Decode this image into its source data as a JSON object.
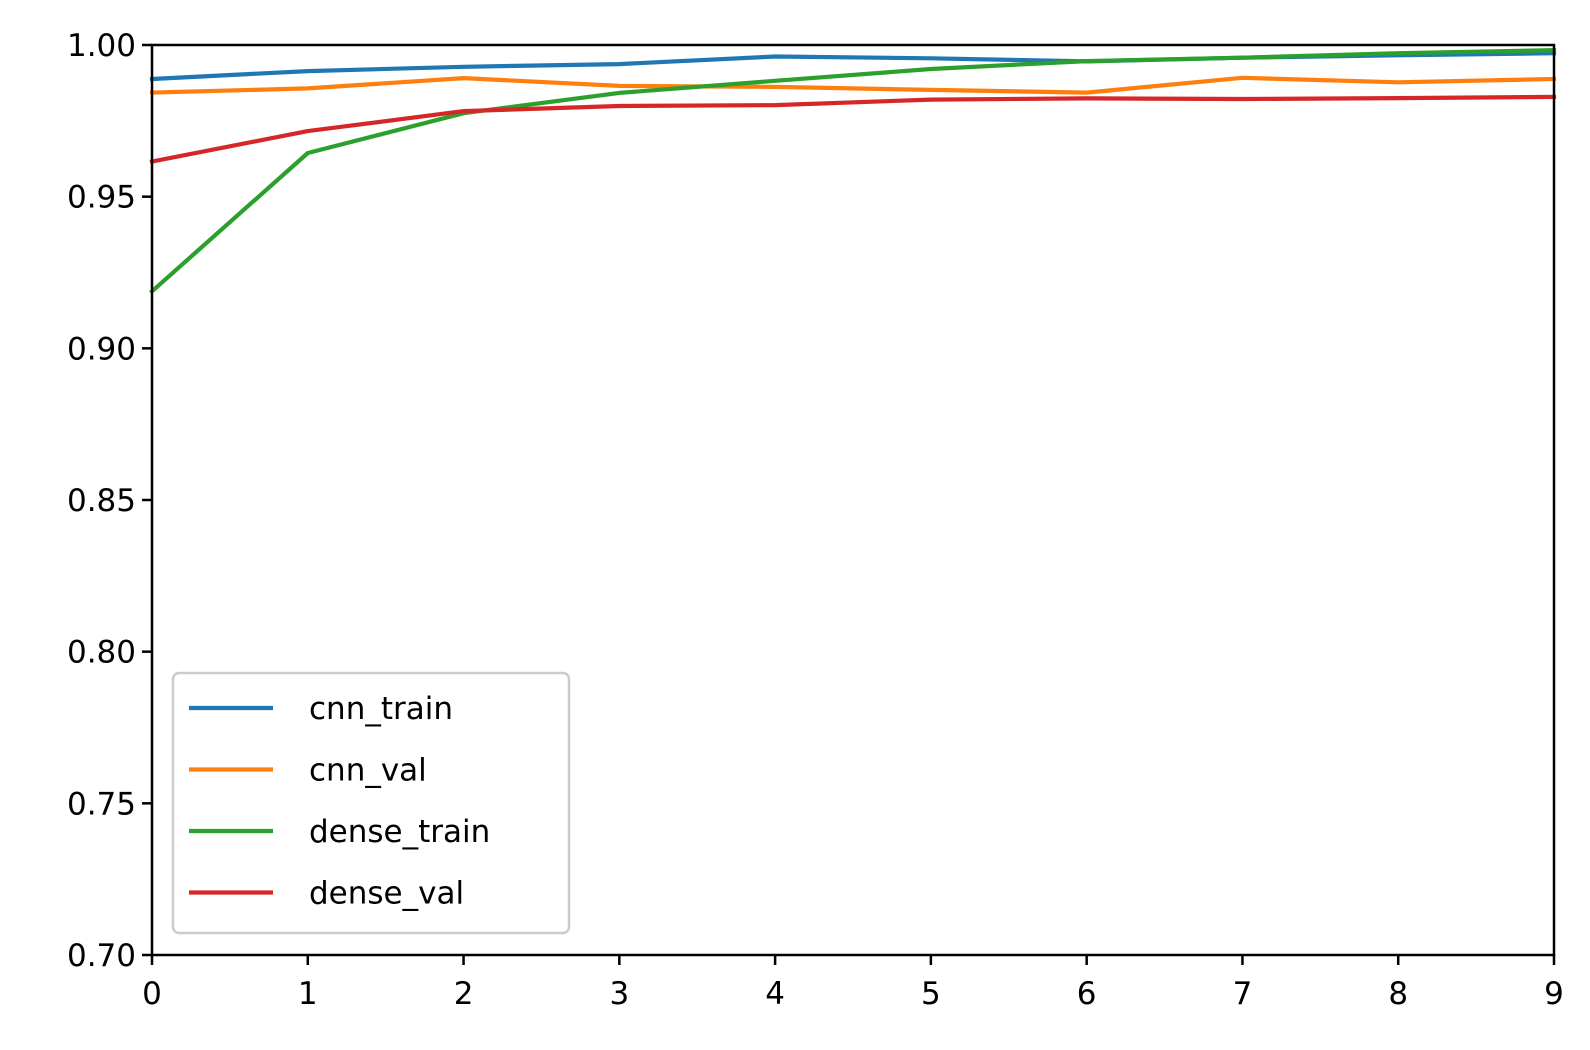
{
  "chart_data": {
    "type": "line",
    "title": "",
    "xlabel": "",
    "ylabel": "",
    "x": [
      0,
      1,
      2,
      3,
      4,
      5,
      6,
      7,
      8,
      9
    ],
    "xlim": [
      0,
      9
    ],
    "ylim": [
      0.7,
      1.0
    ],
    "x_ticks": [
      "0",
      "1",
      "2",
      "3",
      "4",
      "5",
      "6",
      "7",
      "8",
      "9"
    ],
    "y_ticks": [
      "0.70",
      "0.75",
      "0.80",
      "0.85",
      "0.90",
      "0.95",
      "1.00"
    ],
    "grid": false,
    "legend_position": "lower-left",
    "series": [
      {
        "name": "cnn_train",
        "color": "#1f77b4",
        "values": [
          0.9888,
          0.9914,
          0.9928,
          0.9937,
          0.9962,
          0.9956,
          0.9946,
          0.9958,
          0.9966,
          0.9973
        ]
      },
      {
        "name": "cnn_val",
        "color": "#ff7f0e",
        "values": [
          0.9843,
          0.9857,
          0.9891,
          0.9865,
          0.9862,
          0.9852,
          0.9843,
          0.9892,
          0.9877,
          0.9888
        ]
      },
      {
        "name": "dense_train",
        "color": "#2ca02c",
        "values": [
          0.9188,
          0.9644,
          0.9775,
          0.9842,
          0.9882,
          0.9921,
          0.9947,
          0.9958,
          0.9973,
          0.9983
        ]
      },
      {
        "name": "dense_val",
        "color": "#d62728",
        "values": [
          0.9616,
          0.9716,
          0.9782,
          0.9799,
          0.9802,
          0.982,
          0.9824,
          0.9822,
          0.9825,
          0.9829
        ]
      }
    ]
  }
}
